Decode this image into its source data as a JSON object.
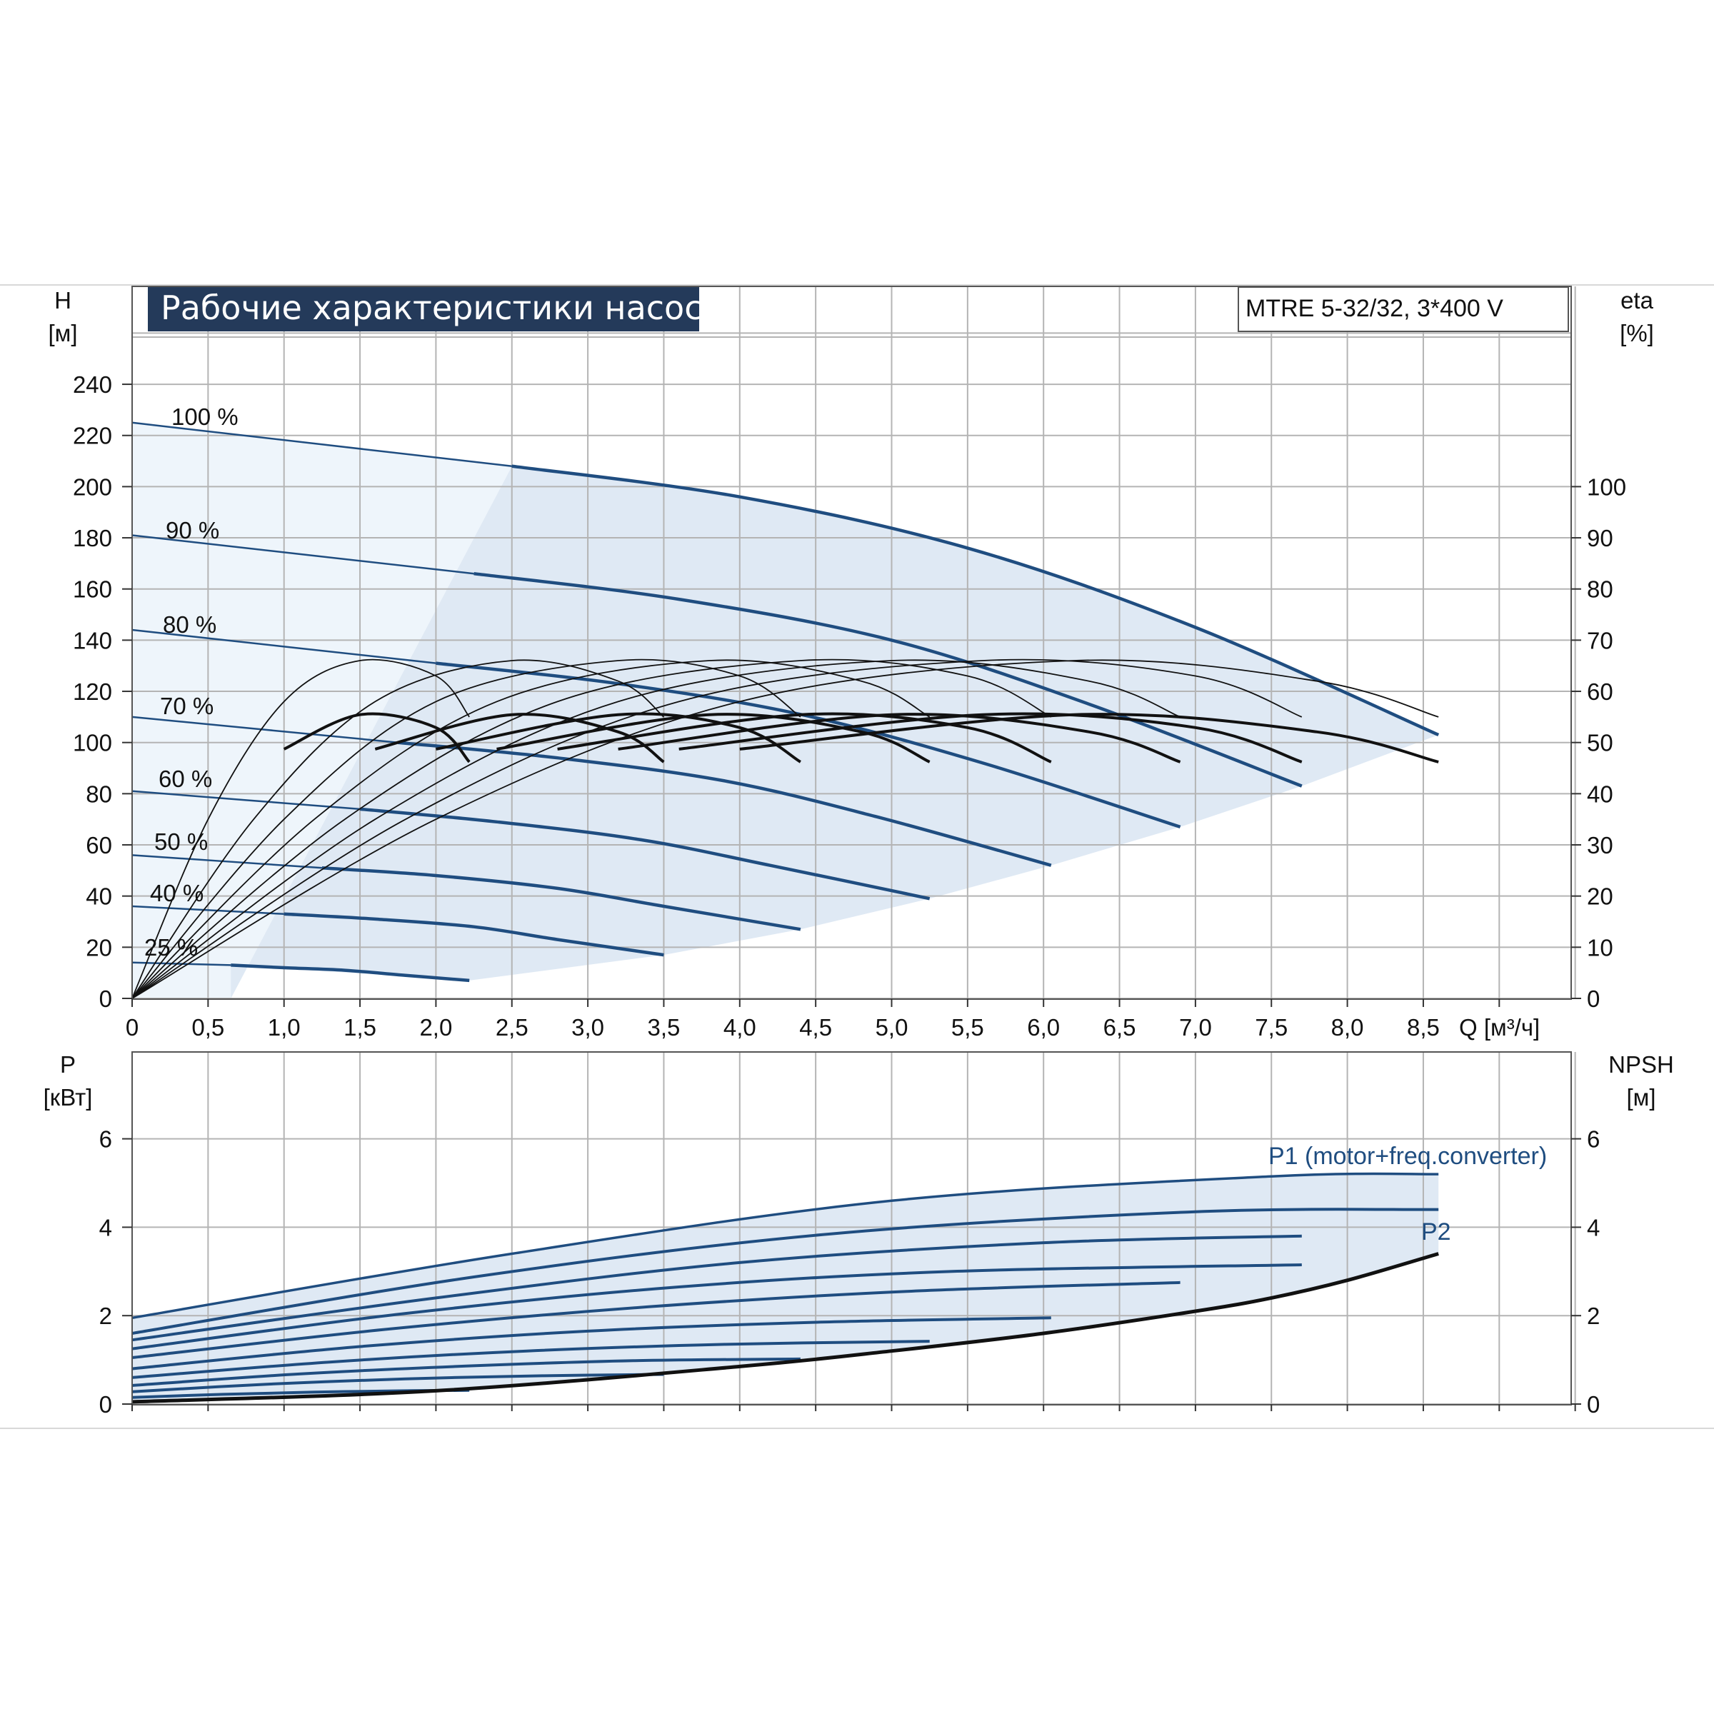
{
  "colors": {
    "curve_blue": "#1f4d80",
    "area_light": "#dfe9f4",
    "area_pale": "#eef5fb",
    "grid": "#b4b4b4",
    "title_bg": "#243a5a",
    "black": "#111111"
  },
  "chart_data": [
    {
      "type": "line",
      "title": "Рабочие характеристики насоса",
      "model": "MTRE 5-32/32, 3*400 V",
      "ylabel": "H",
      "yunit": "[м]",
      "y2label": "eta",
      "y2unit": "[%]",
      "xlabel": "Q [м³/ч]",
      "xlim": [
        0,
        9.5
      ],
      "ylim": [
        0,
        240
      ],
      "y2lim": [
        0,
        120
      ],
      "x_ticks": [
        "0",
        "0,5",
        "1,0",
        "1,5",
        "2,0",
        "2,5",
        "3,0",
        "3,5",
        "4,0",
        "4,5",
        "5,0",
        "5,5",
        "6,0",
        "6,5",
        "7,0",
        "7,5",
        "8,0",
        "8,5"
      ],
      "y_ticks": [
        "0",
        "20",
        "40",
        "60",
        "80",
        "100",
        "120",
        "140",
        "160",
        "180",
        "200",
        "220",
        "240"
      ],
      "y2_ticks": [
        "0",
        "10",
        "20",
        "30",
        "40",
        "50",
        "60",
        "70",
        "80",
        "90",
        "100"
      ],
      "grid": true,
      "head_curves": [
        {
          "label": "100 %",
          "x": [
            0,
            2.5,
            4.0,
            5.5,
            7.0,
            8.6
          ],
          "y": [
            225,
            208,
            196,
            176,
            145,
            103
          ]
        },
        {
          "label": "90 %",
          "x": [
            0,
            2.25,
            3.6,
            5.0,
            6.3,
            7.7
          ],
          "y": [
            181,
            166,
            156,
            140,
            115,
            83
          ]
        },
        {
          "label": "80 %",
          "x": [
            0,
            2.0,
            3.2,
            4.4,
            5.6,
            6.9
          ],
          "y": [
            144,
            131,
            123,
            111,
            92,
            67
          ]
        },
        {
          "label": "70 %",
          "x": [
            0,
            1.75,
            2.8,
            3.9,
            4.9,
            6.05
          ],
          "y": [
            110,
            100,
            94,
            85,
            71,
            52
          ]
        },
        {
          "label": "60 %",
          "x": [
            0,
            1.5,
            2.4,
            3.35,
            4.2,
            5.25
          ],
          "y": [
            81,
            74,
            69,
            62,
            52,
            39
          ]
        },
        {
          "label": "50 %",
          "x": [
            0,
            1.25,
            2.0,
            2.8,
            3.5,
            4.4
          ],
          "y": [
            56,
            51,
            48,
            43,
            36,
            27
          ]
        },
        {
          "label": "40 %",
          "x": [
            0,
            1.0,
            1.6,
            2.25,
            2.8,
            3.5
          ],
          "y": [
            36,
            33,
            31,
            28,
            23,
            17
          ]
        },
        {
          "label": "25 %",
          "x": [
            0,
            0.65,
            1.0,
            1.4,
            1.8,
            2.22
          ],
          "y": [
            14,
            13,
            12,
            11,
            9,
            7
          ]
        }
      ],
      "eta_curves": [
        {
          "x": [
            0,
            0.5,
            1.0,
            1.5,
            2.0,
            2.22
          ],
          "y": [
            0,
            35,
            58,
            66,
            63,
            55
          ]
        },
        {
          "x": [
            0,
            0.8,
            1.6,
            2.5,
            3.2,
            3.5
          ],
          "y": [
            0,
            35,
            58,
            66,
            62,
            55
          ]
        },
        {
          "x": [
            0,
            1.0,
            2.0,
            3.2,
            4.0,
            4.4
          ],
          "y": [
            0,
            35,
            58,
            66,
            63,
            55
          ]
        },
        {
          "x": [
            0,
            1.2,
            2.4,
            3.8,
            4.8,
            5.25
          ],
          "y": [
            0,
            35,
            58,
            66,
            62,
            55
          ]
        },
        {
          "x": [
            0,
            1.4,
            2.8,
            4.4,
            5.5,
            6.05
          ],
          "y": [
            0,
            35,
            58,
            66,
            63,
            55
          ]
        },
        {
          "x": [
            0,
            1.6,
            3.2,
            5.0,
            6.3,
            6.9
          ],
          "y": [
            0,
            35,
            58,
            66,
            62,
            55
          ]
        },
        {
          "x": [
            0,
            1.8,
            3.6,
            5.6,
            7.0,
            7.7
          ],
          "y": [
            0,
            35,
            58,
            66,
            63,
            55
          ]
        },
        {
          "x": [
            0,
            2.0,
            4.0,
            6.2,
            7.8,
            8.6
          ],
          "y": [
            0,
            35,
            58,
            66,
            62,
            55
          ]
        }
      ]
    },
    {
      "type": "line",
      "ylabel": "P",
      "yunit": "[кВт]",
      "y2label": "NPSH",
      "y2unit": "[м]",
      "xlim": [
        0,
        9.5
      ],
      "ylim": [
        0,
        7
      ],
      "y_ticks": [
        "0",
        "2",
        "4",
        "6"
      ],
      "y2_ticks": [
        "0",
        "2",
        "4",
        "6"
      ],
      "grid": true,
      "curve_labels": {
        "p1": "P1 (motor+freq.converter)",
        "p2": "P2"
      },
      "p1_curves": [
        {
          "x": [
            0,
            2.5,
            5.0,
            7.5,
            8.6
          ],
          "y": [
            1.95,
            3.4,
            4.6,
            5.15,
            5.2
          ]
        },
        {
          "x": [
            0,
            2.3,
            4.6,
            7.0,
            8.6
          ],
          "y": [
            1.6,
            2.9,
            3.85,
            4.35,
            4.4
          ]
        },
        {
          "x": [
            0,
            2.0,
            4.0,
            6.0,
            7.7
          ],
          "y": [
            1.45,
            2.4,
            3.2,
            3.65,
            3.8
          ]
        },
        {
          "x": [
            0,
            1.8,
            3.6,
            5.4,
            7.7
          ],
          "y": [
            1.25,
            2.05,
            2.65,
            3.0,
            3.15
          ]
        },
        {
          "x": [
            0,
            1.7,
            3.4,
            5.1,
            6.9
          ],
          "y": [
            1.05,
            1.7,
            2.2,
            2.55,
            2.75
          ]
        },
        {
          "x": [
            0,
            1.5,
            3.0,
            4.5,
            6.05
          ],
          "y": [
            0.8,
            1.3,
            1.65,
            1.85,
            1.95
          ]
        },
        {
          "x": [
            0,
            1.3,
            2.6,
            3.9,
            5.25
          ],
          "y": [
            0.6,
            0.95,
            1.2,
            1.35,
            1.42
          ]
        },
        {
          "x": [
            0,
            1.1,
            2.2,
            3.3,
            4.4
          ],
          "y": [
            0.42,
            0.68,
            0.86,
            0.98,
            1.02
          ]
        },
        {
          "x": [
            0,
            0.9,
            1.8,
            2.7,
            3.5
          ],
          "y": [
            0.28,
            0.45,
            0.57,
            0.64,
            0.67
          ]
        },
        {
          "x": [
            0,
            0.6,
            1.2,
            1.8,
            2.22
          ],
          "y": [
            0.15,
            0.22,
            0.27,
            0.3,
            0.31
          ]
        }
      ],
      "p2_curve": {
        "x": [
          0,
          2.0,
          4.0,
          5.0,
          6.0,
          7.0,
          7.5,
          8.0,
          8.6
        ],
        "y": [
          0.05,
          0.3,
          0.85,
          1.2,
          1.6,
          2.1,
          2.4,
          2.8,
          3.4
        ]
      }
    }
  ]
}
